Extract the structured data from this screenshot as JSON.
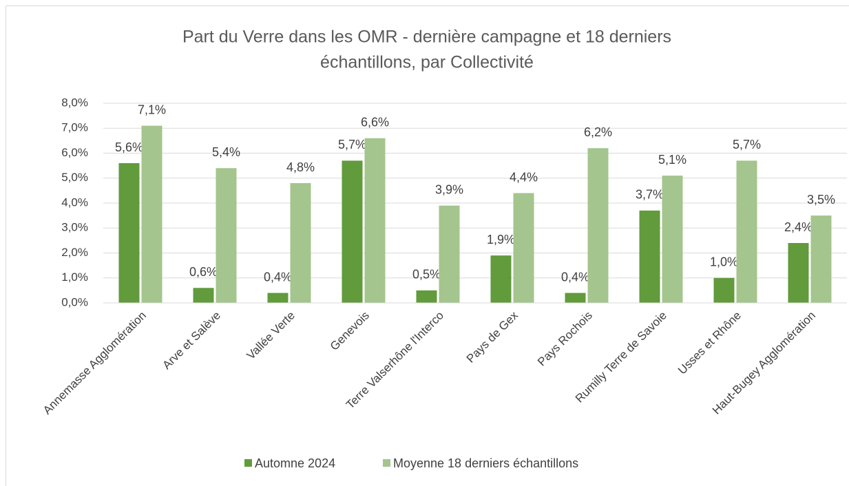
{
  "chart_data": {
    "type": "bar",
    "title": [
      "Part du Verre dans les OMR - dernière campagne et 18 derniers",
      "échantillons, par Collectivité"
    ],
    "categories": [
      "Annemasse Agglomération",
      "Arve et Salève",
      "Vallée Verte",
      "Genevois",
      "Terre Valserhône l'Interco",
      "Pays de Gex",
      "Pays Rochois",
      "Rumilly Terre de Savoie",
      "Usses et Rhône",
      "Haut-Bugey Agglomération"
    ],
    "series": [
      {
        "name": "Automne 2024",
        "color": "#619b3c",
        "values": [
          5.6,
          0.6,
          0.4,
          5.7,
          0.5,
          1.9,
          0.4,
          3.7,
          1.0,
          2.4
        ],
        "value_labels": [
          "5,6%",
          "0,6%",
          "0,4%",
          "5,7%",
          "0,5%",
          "1,9%",
          "0,4%",
          "3,7%",
          "1,0%",
          "2,4%"
        ]
      },
      {
        "name": "Moyenne 18 derniers échantillons",
        "color": "#a4c58d",
        "values": [
          7.1,
          5.4,
          4.8,
          6.6,
          3.9,
          4.4,
          6.2,
          5.1,
          5.7,
          3.5
        ],
        "value_labels": [
          "7,1%",
          "5,4%",
          "4,8%",
          "6,6%",
          "3,9%",
          "4,4%",
          "6,2%",
          "5,1%",
          "5,7%",
          "3,5%"
        ]
      }
    ],
    "ylim": [
      0,
      8
    ],
    "yticks": [
      {
        "value": 0,
        "label": "0,0%"
      },
      {
        "value": 1,
        "label": "1,0%"
      },
      {
        "value": 2,
        "label": "2,0%"
      },
      {
        "value": 3,
        "label": "3,0%"
      },
      {
        "value": 4,
        "label": "4,0%"
      },
      {
        "value": 5,
        "label": "5,0%"
      },
      {
        "value": 6,
        "label": "6,0%"
      },
      {
        "value": 7,
        "label": "7,0%"
      },
      {
        "value": 8,
        "label": "8,0%"
      }
    ],
    "grid": true,
    "legend": "bottom"
  }
}
